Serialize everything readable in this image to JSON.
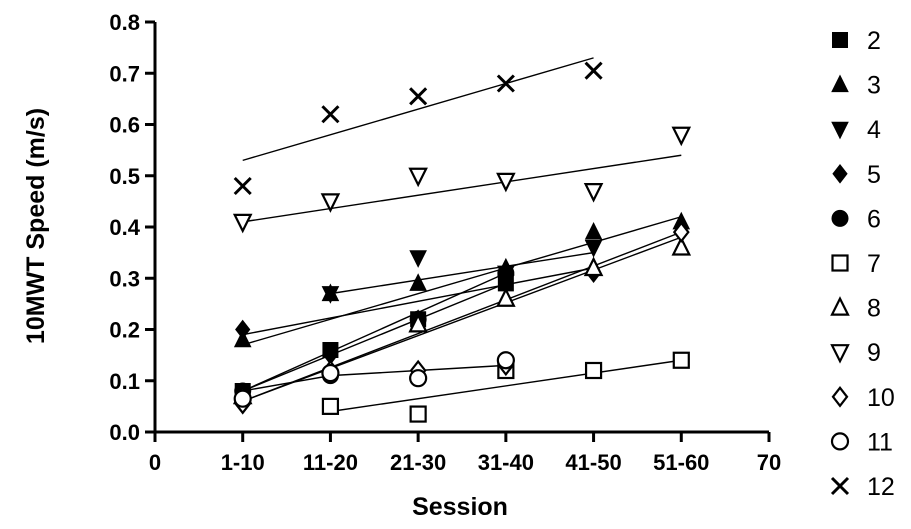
{
  "chart_data": {
    "type": "scatter",
    "title": "",
    "xlabel": "Session",
    "ylabel": "10MWT Speed (m/s)",
    "xlim": [
      0,
      70
    ],
    "ylim": [
      0,
      0.8
    ],
    "x_ticks": [
      "0",
      "10",
      "20",
      "30",
      "40",
      "50",
      "60",
      "70"
    ],
    "x_tick_labels": [
      "0",
      "1-10",
      "11-20",
      "21-30",
      "31-40",
      "41-50",
      "51-60",
      "70"
    ],
    "y_ticks": [
      "0.0",
      "0.1",
      "0.2",
      "0.3",
      "0.4",
      "0.5",
      "0.6",
      "0.7",
      "0.8"
    ],
    "legend_position": "right",
    "series": [
      {
        "name": "2",
        "marker": "square-filled",
        "points": [
          [
            10,
            0.08
          ],
          [
            20,
            0.16
          ],
          [
            30,
            0.22
          ],
          [
            40,
            0.29
          ]
        ],
        "trend": [
          [
            10,
            0.08
          ],
          [
            40,
            0.29
          ]
        ]
      },
      {
        "name": "3",
        "marker": "triangle-up-filled",
        "points": [
          [
            10,
            0.18
          ],
          [
            20,
            0.27
          ],
          [
            30,
            0.29
          ],
          [
            40,
            0.32
          ],
          [
            50,
            0.39
          ],
          [
            60,
            0.41
          ]
        ],
        "trend": [
          [
            10,
            0.17
          ],
          [
            60,
            0.42
          ]
        ]
      },
      {
        "name": "4",
        "marker": "triangle-down-filled",
        "points": [
          [
            20,
            0.27
          ],
          [
            30,
            0.34
          ],
          [
            40,
            0.31
          ],
          [
            50,
            0.36
          ]
        ],
        "trend": [
          [
            20,
            0.27
          ],
          [
            50,
            0.35
          ]
        ]
      },
      {
        "name": "5",
        "marker": "diamond-filled",
        "points": [
          [
            10,
            0.2
          ],
          [
            20,
            0.15
          ],
          [
            30,
            0.22
          ],
          [
            40,
            0.3
          ],
          [
            50,
            0.31
          ]
        ],
        "trend": [
          [
            10,
            0.19
          ],
          [
            50,
            0.32
          ]
        ]
      },
      {
        "name": "6",
        "marker": "circle-filled",
        "points": [
          [
            10,
            0.08
          ],
          [
            20,
            0.11
          ],
          [
            30,
            0.22
          ],
          [
            40,
            0.31
          ]
        ],
        "trend": [
          [
            10,
            0.08
          ],
          [
            40,
            0.31
          ]
        ]
      },
      {
        "name": "7",
        "marker": "square-open",
        "points": [
          [
            20,
            0.05
          ],
          [
            30,
            0.035
          ],
          [
            40,
            0.12
          ],
          [
            50,
            0.12
          ],
          [
            60,
            0.14
          ]
        ],
        "trend": [
          [
            20,
            0.04
          ],
          [
            60,
            0.14
          ]
        ]
      },
      {
        "name": "8",
        "marker": "triangle-up-open",
        "points": [
          [
            10,
            0.07
          ],
          [
            30,
            0.21
          ],
          [
            40,
            0.26
          ],
          [
            50,
            0.32
          ],
          [
            60,
            0.36
          ]
        ],
        "trend": [
          [
            10,
            0.06
          ],
          [
            60,
            0.38
          ]
        ]
      },
      {
        "name": "9",
        "marker": "triangle-down-open",
        "points": [
          [
            10,
            0.41
          ],
          [
            20,
            0.45
          ],
          [
            30,
            0.5
          ],
          [
            40,
            0.49
          ],
          [
            50,
            0.47
          ],
          [
            60,
            0.58
          ]
        ],
        "trend": [
          [
            10,
            0.41
          ],
          [
            60,
            0.54
          ]
        ]
      },
      {
        "name": "10",
        "marker": "diamond-open",
        "points": [
          [
            10,
            0.055
          ],
          [
            20,
            0.12
          ],
          [
            30,
            0.12
          ],
          [
            40,
            0.13
          ],
          [
            60,
            0.39
          ]
        ],
        "trend": [
          [
            10,
            0.06
          ],
          [
            60,
            0.39
          ]
        ]
      },
      {
        "name": "11",
        "marker": "circle-open",
        "points": [
          [
            10,
            0.065
          ],
          [
            20,
            0.115
          ],
          [
            30,
            0.105
          ],
          [
            40,
            0.14
          ]
        ],
        "trend": [
          [
            10,
            0.08
          ],
          [
            20,
            0.11
          ],
          [
            30,
            0.12
          ],
          [
            40,
            0.13
          ]
        ]
      },
      {
        "name": "12",
        "marker": "x",
        "points": [
          [
            10,
            0.48
          ],
          [
            20,
            0.62
          ],
          [
            30,
            0.655
          ],
          [
            40,
            0.68
          ],
          [
            50,
            0.705
          ]
        ],
        "trend": [
          [
            10,
            0.53
          ],
          [
            50,
            0.73
          ]
        ]
      }
    ]
  }
}
